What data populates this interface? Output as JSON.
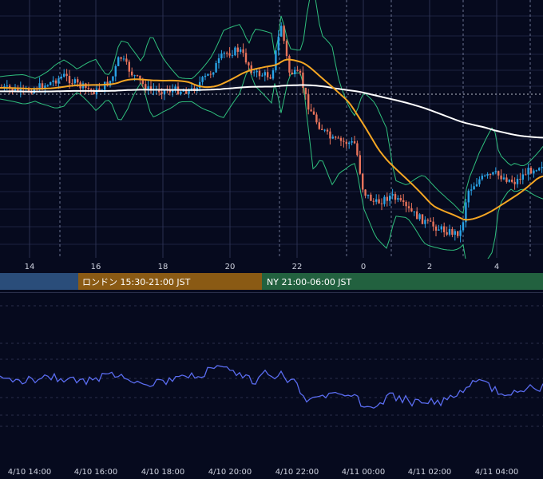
{
  "main_chart": {
    "x_tick_labels": [
      "14",
      "16",
      "18",
      "20",
      "22",
      "0",
      "2",
      "4"
    ]
  },
  "sessions": [
    {
      "label": "",
      "color": "#2a4d7a"
    },
    {
      "label": "ロンドン 15:30-21:00 JST",
      "color": "#8a5a14"
    },
    {
      "label": "NY 21:00-06:00 JST",
      "color": "#22613f"
    }
  ],
  "oscillator": {
    "x_tick_labels": [
      "4/10 14:00",
      "4/10 16:00",
      "4/10 18:00",
      "4/10 20:00",
      "4/10 22:00",
      "4/11 00:00",
      "4/11 02:00",
      "4/11 04:00"
    ]
  },
  "colors": {
    "background": "#060a1e",
    "bull_candle": "#29a3e6",
    "bear_candle": "#e8735b",
    "bollinger_band": "#2fbf7d",
    "ma_fast": "#f5a623",
    "ma_slow": "#ffffff",
    "oscillator_line": "#5a6cf0"
  }
}
